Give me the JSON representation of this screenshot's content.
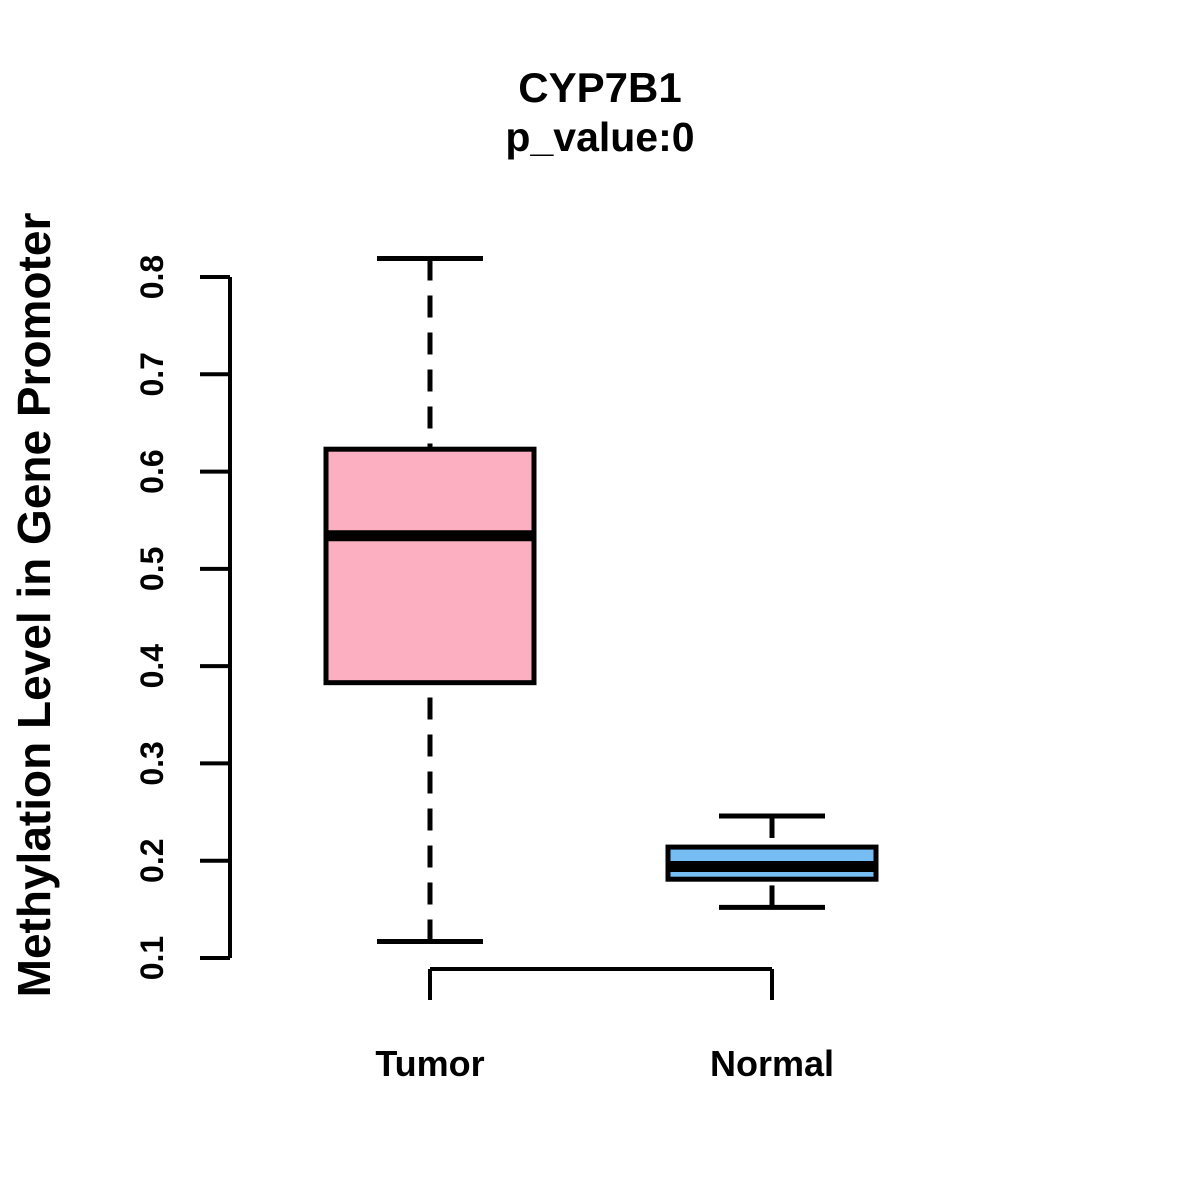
{
  "chart_data": {
    "type": "boxplot",
    "title": "CYP7B1",
    "subtitle": "p_value:0",
    "ylabel": "Methylation Level in Gene Promoter",
    "xlabel": "",
    "ylim": [
      0.1,
      0.8
    ],
    "yticks": [
      0.1,
      0.2,
      0.3,
      0.4,
      0.5,
      0.6,
      0.7,
      0.8
    ],
    "grid": false,
    "categories": [
      "Tumor",
      "Normal"
    ],
    "series": [
      {
        "name": "Tumor",
        "box_fill_color": "#FCAFC1",
        "whisker_low": 0.117,
        "q1": 0.383,
        "median": 0.534,
        "q3": 0.623,
        "whisker_high": 0.819
      },
      {
        "name": "Normal",
        "box_fill_color": "#75BDF2",
        "whisker_low": 0.152,
        "q1": 0.181,
        "median": 0.194,
        "q3": 0.214,
        "whisker_high": 0.246
      }
    ],
    "line_color": "#000000"
  }
}
